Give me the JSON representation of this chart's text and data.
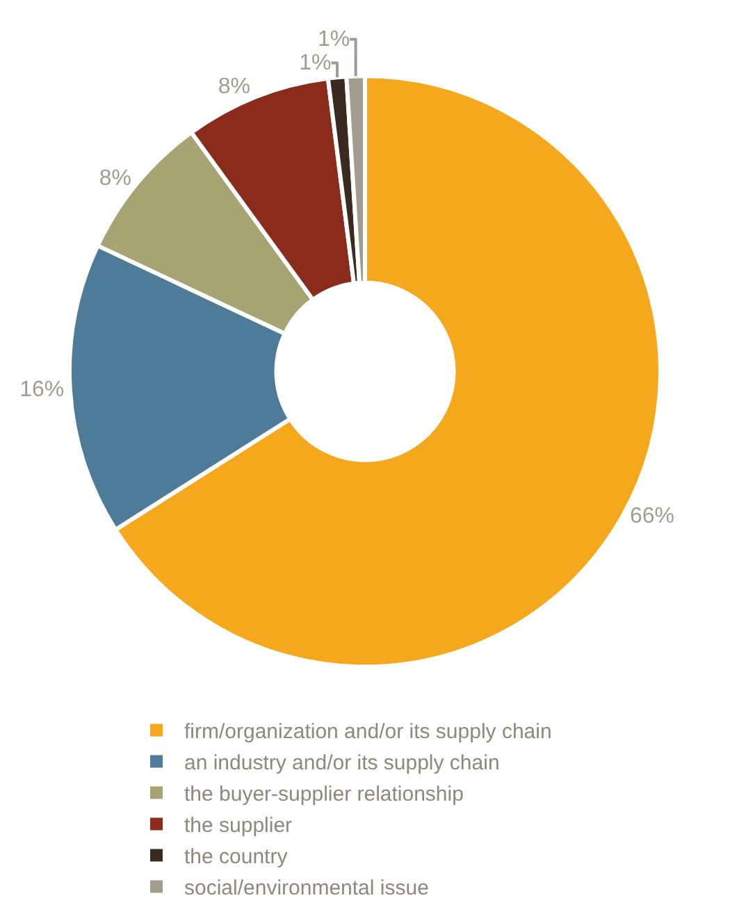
{
  "chart_data": {
    "type": "donut",
    "categories": [
      "firm/organization and/or its supply chain",
      "an industry and/or its supply chain",
      "the buyer-supplier relationship",
      "the supplier",
      "the country",
      "social/environmental issue"
    ],
    "values": [
      66,
      16,
      8,
      8,
      1,
      1
    ],
    "value_labels": [
      "66%",
      "16%",
      "8%",
      "8%",
      "1%",
      "1%"
    ],
    "colors": [
      "#f5a81c",
      "#4e7b97",
      "#a6a473",
      "#8a2b1c",
      "#3b2a22",
      "#a29b8f"
    ],
    "legend": "bottom"
  }
}
